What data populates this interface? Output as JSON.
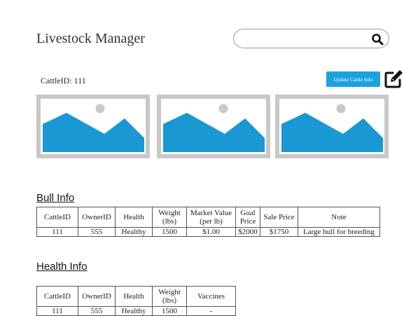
{
  "header": {
    "app_title": "Livestock Manager",
    "search": {
      "value": "",
      "placeholder": ""
    },
    "search_icon": "search-icon"
  },
  "cattle": {
    "id_label": "CattleID:",
    "id_value": "111",
    "update_label": "Update Cattle Info",
    "edit_icon": "pencil-square-icon"
  },
  "photos": {
    "count": 3,
    "icon": "image-placeholder-icon",
    "frame_color": "#c8c8c8",
    "mountain_color": "#1a98d4"
  },
  "bull_info": {
    "title": "Bull Info",
    "headers": [
      "CattleID",
      "OwnerID",
      "Health",
      "Weight (lbs)",
      "Market Value (per lb)",
      "Goal Price",
      "Sale Price",
      "Note"
    ],
    "rows": [
      [
        "111",
        "555",
        "Healthy",
        "1500",
        "$1.00",
        "$2000",
        "$1750",
        "Large bull for breeding"
      ]
    ]
  },
  "health_info": {
    "title": "Health Info",
    "headers": [
      "CattleID",
      "OwnerID",
      "Health",
      "Weight (lbs)",
      "Vaccines"
    ],
    "rows": [
      [
        "111",
        "555",
        "Healthy",
        "1500",
        "-"
      ]
    ]
  },
  "colors": {
    "accent": "#1da2dd"
  }
}
